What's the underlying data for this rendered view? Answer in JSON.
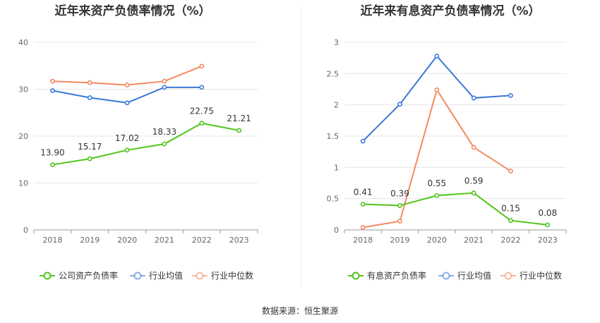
{
  "source": "数据来源：恒生聚源",
  "chart_data": [
    {
      "type": "line",
      "title": "近年来资产负债率情况（%）",
      "categories": [
        "2018",
        "2019",
        "2020",
        "2021",
        "2022",
        "2023"
      ],
      "ylim": [
        0,
        40
      ],
      "yticks": [
        0,
        10,
        20,
        30,
        40
      ],
      "ytick_labels": [
        "0",
        "10",
        "20",
        "30",
        "40"
      ],
      "grid": true,
      "legend_position": "bottom",
      "series": [
        {
          "name": "公司资产负债率",
          "color": "#52c41a",
          "values": [
            13.9,
            15.17,
            17.02,
            18.33,
            22.75,
            21.21
          ],
          "labels": [
            "13.90",
            "15.17",
            "17.02",
            "18.33",
            "22.75",
            "21.21"
          ]
        },
        {
          "name": "行业均值",
          "color": "#3b78d8",
          "values": [
            29.7,
            28.2,
            27.1,
            30.4,
            30.4,
            null
          ]
        },
        {
          "name": "行业中位数",
          "color": "#f4895f",
          "values": [
            31.7,
            31.4,
            30.9,
            31.7,
            34.9,
            null
          ]
        }
      ]
    },
    {
      "type": "line",
      "title": "近年来有息资产负债率情况（%）",
      "categories": [
        "2018",
        "2019",
        "2020",
        "2021",
        "2022",
        "2023"
      ],
      "ylim": [
        0,
        3
      ],
      "yticks": [
        0,
        0.5,
        1,
        1.5,
        2,
        2.5,
        3
      ],
      "ytick_labels": [
        "0",
        "0.5",
        "1",
        "1.5",
        "2",
        "2.5",
        "3"
      ],
      "grid": true,
      "legend_position": "bottom",
      "series": [
        {
          "name": "有息资产负债率",
          "color": "#52c41a",
          "values": [
            0.41,
            0.39,
            0.55,
            0.59,
            0.15,
            0.08
          ],
          "labels": [
            "0.41",
            "0.39",
            "0.55",
            "0.59",
            "0.15",
            "0.08"
          ]
        },
        {
          "name": "行业均值",
          "color": "#3b78d8",
          "values": [
            1.42,
            2.01,
            2.78,
            2.11,
            2.15,
            null
          ]
        },
        {
          "name": "行业中位数",
          "color": "#f4895f",
          "values": [
            0.04,
            0.14,
            2.24,
            1.32,
            0.94,
            null
          ]
        }
      ]
    }
  ]
}
